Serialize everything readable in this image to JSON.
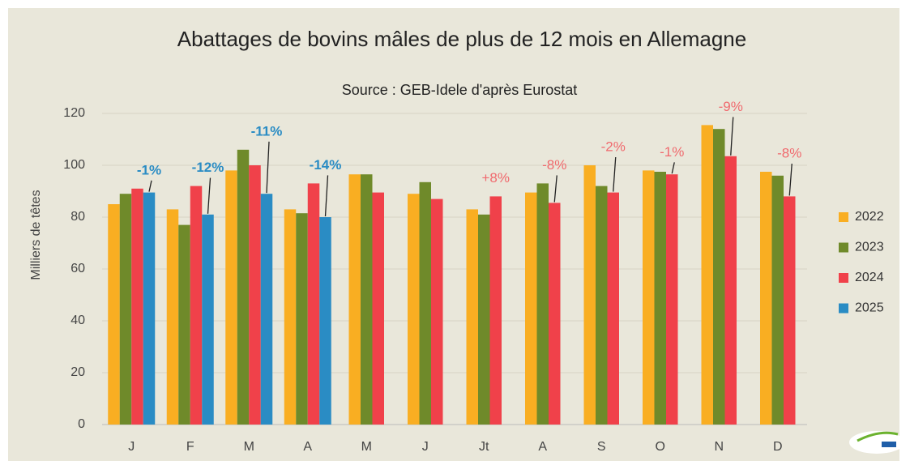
{
  "chart_data": {
    "type": "bar",
    "title": "Abattages de bovins mâles de plus de 12 mois en Allemagne",
    "subtitle": "Source : GEB-Idele d'après Eurostat",
    "y_label": "Milliers de têtes",
    "categories": [
      "J",
      "F",
      "M",
      "A",
      "M",
      "J",
      "Jt",
      "A",
      "S",
      "O",
      "N",
      "D"
    ],
    "series": [
      {
        "name": "2022",
        "color": "#f9ae22",
        "values": [
          85,
          83,
          98,
          83,
          96.5,
          89,
          83,
          89.5,
          100,
          98,
          115.5,
          97.5
        ]
      },
      {
        "name": "2023",
        "color": "#6f8a2a",
        "values": [
          89,
          77,
          106,
          81.5,
          96.5,
          93.5,
          81,
          93,
          92,
          97.5,
          114,
          96
        ]
      },
      {
        "name": "2024",
        "color": "#f0414a",
        "values": [
          91,
          92,
          100,
          93,
          89.5,
          87,
          88,
          85.5,
          89.5,
          96.5,
          103.5,
          88
        ]
      },
      {
        "name": "2025",
        "color": "#2a8cc4",
        "values": [
          89.5,
          81,
          89,
          80,
          null,
          null,
          null,
          null,
          null,
          null,
          null,
          null
        ]
      }
    ],
    "annotations": [
      "-1%",
      "-12%",
      "-11%",
      "-14%",
      null,
      null,
      "+8%",
      "-8%",
      "-2%",
      "-1%",
      "-9%",
      "-8%"
    ],
    "ylim": [
      0,
      120
    ],
    "yticks": [
      0,
      20,
      40,
      60,
      80,
      100,
      120
    ],
    "grid": true,
    "legend": "right"
  }
}
